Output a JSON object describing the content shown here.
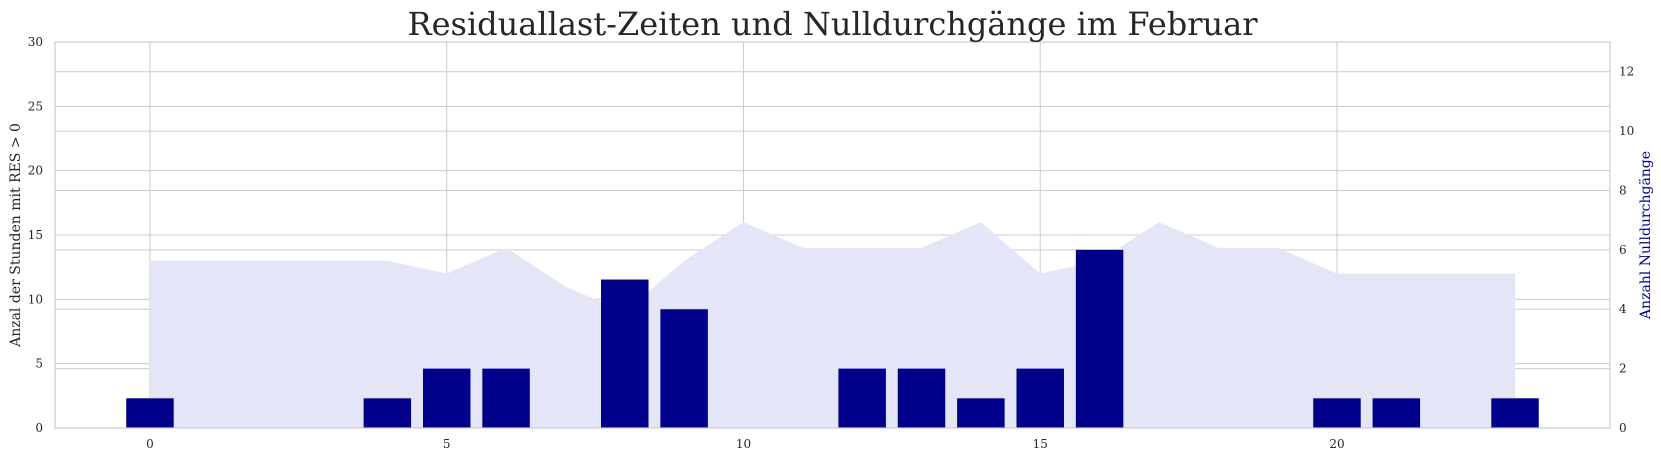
{
  "chart_data": {
    "type": "bar",
    "title": "Residuallast-Zeiten und Nulldurchgänge im Februar",
    "xlabel": "",
    "ylabel": "Anzal der Stunden mit RES > 0",
    "y2label": "Anzahl Nulldurchgänge",
    "xlim": [
      -1.6,
      24.6
    ],
    "ylim": [
      0,
      30
    ],
    "y2lim": [
      0,
      13
    ],
    "x_ticks": [
      0,
      5,
      10,
      15,
      20
    ],
    "y_ticks": [
      0,
      5,
      10,
      15,
      20,
      25,
      30
    ],
    "y2_ticks": [
      0,
      2,
      4,
      6,
      8,
      10,
      12
    ],
    "grid": true,
    "area_series": {
      "axis": "left",
      "x": [
        0,
        1,
        2,
        3,
        4,
        5,
        6,
        7,
        8,
        9,
        10,
        11,
        12,
        13,
        14,
        15,
        16,
        17,
        18,
        19,
        20,
        21,
        22,
        23
      ],
      "values": [
        13,
        13,
        13,
        13,
        13,
        12,
        14,
        11,
        9,
        13,
        16,
        14,
        14,
        14,
        16,
        12,
        13,
        16,
        14,
        14,
        12,
        12,
        12,
        12
      ]
    },
    "bar_series": {
      "axis": "right",
      "x": [
        0,
        1,
        2,
        3,
        4,
        5,
        6,
        7,
        8,
        9,
        10,
        11,
        12,
        13,
        14,
        15,
        16,
        17,
        18,
        19,
        20,
        21,
        22,
        23
      ],
      "values": [
        1,
        0,
        0,
        0,
        1,
        2,
        2,
        0,
        5,
        4,
        0,
        0,
        2,
        2,
        1,
        2,
        6,
        0,
        0,
        0,
        1,
        1,
        0,
        1
      ]
    },
    "colors": {
      "area": "#e5e5f8",
      "bar": "#00008b",
      "right_label": "#00008b"
    }
  }
}
